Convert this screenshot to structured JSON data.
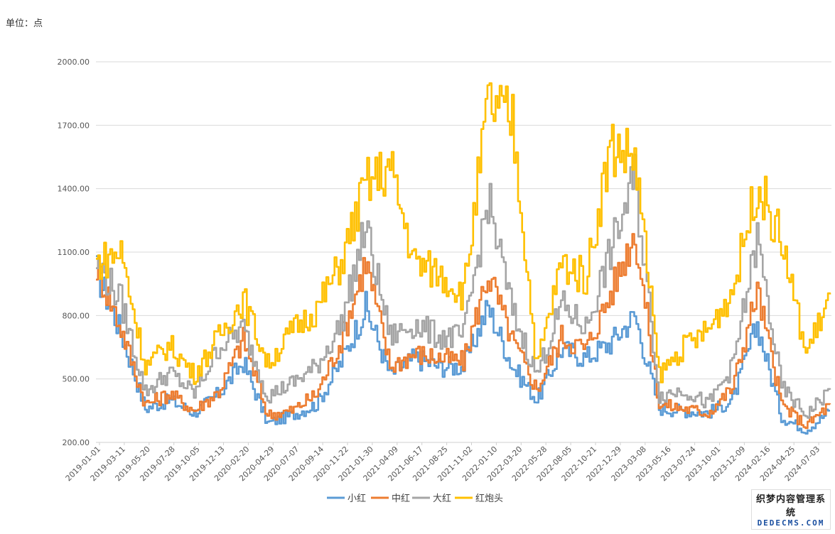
{
  "unit_label": "单位：点",
  "watermark": {
    "line1": "织梦内容管理系统",
    "line2": "DEDECMS.COM"
  },
  "chart_data": {
    "type": "line",
    "title": "",
    "xlabel": "",
    "ylabel": "",
    "ylim": [
      200,
      2200
    ],
    "yticks": [
      200,
      500,
      800,
      1100,
      1400,
      1700,
      2000
    ],
    "ytick_labels": [
      "200.00",
      "500.00",
      "800.00",
      "1100.00",
      "1400.00",
      "1700.00",
      "2000.00"
    ],
    "grid": "horizontal",
    "legend_position": "bottom",
    "x_tick_labels": [
      "2019-01-01",
      "2019-03-11",
      "2019-05-20",
      "2019-07-28",
      "2019-10-05",
      "2019-12-13",
      "2020-02-20",
      "2020-04-29",
      "2020-07-07",
      "2020-09-14",
      "2020-11-22",
      "2021-01-30",
      "2021-04-09",
      "2021-06-17",
      "2021-08-25",
      "2021-11-02",
      "2022-01-10",
      "2022-03-20",
      "2022-05-28",
      "2022-08-05",
      "2022-10-21",
      "2022-12-29",
      "2023-03-08",
      "2023-05-16",
      "2023-07-24",
      "2023-10-01",
      "2023-12-09",
      "2024-02-16",
      "2024-04-25",
      "2024-07-03"
    ],
    "x": [
      "2019-01-01",
      "2019-03-11",
      "2019-05-20",
      "2019-07-28",
      "2019-10-05",
      "2019-12-13",
      "2020-02-20",
      "2020-04-29",
      "2020-07-07",
      "2020-09-14",
      "2020-11-22",
      "2021-01-30",
      "2021-04-09",
      "2021-06-17",
      "2021-08-25",
      "2021-11-02",
      "2022-01-10",
      "2022-03-20",
      "2022-05-28",
      "2022-08-05",
      "2022-10-21",
      "2022-12-29",
      "2023-03-08",
      "2023-05-16",
      "2023-07-24",
      "2023-10-01",
      "2023-12-09",
      "2024-02-16",
      "2024-04-25",
      "2024-07-03",
      "2024-08-01"
    ],
    "series": [
      {
        "name": "小红",
        "color": "#5B9BD5",
        "values": [
          1010,
          720,
          360,
          400,
          340,
          430,
          580,
          290,
          330,
          380,
          580,
          840,
          520,
          600,
          560,
          560,
          840,
          560,
          400,
          640,
          600,
          670,
          800,
          360,
          350,
          340,
          400,
          760,
          320,
          260,
          350
        ]
      },
      {
        "name": "中红",
        "color": "#ED7D31",
        "values": [
          1040,
          740,
          380,
          430,
          350,
          440,
          690,
          330,
          350,
          430,
          680,
          1060,
          560,
          620,
          600,
          580,
          1000,
          680,
          450,
          700,
          640,
          900,
          1200,
          380,
          360,
          340,
          460,
          920,
          380,
          280,
          380
        ]
      },
      {
        "name": "大红",
        "color": "#A5A5A5",
        "values": [
          1050,
          870,
          440,
          530,
          430,
          650,
          740,
          420,
          480,
          560,
          760,
          1220,
          700,
          760,
          700,
          700,
          1350,
          820,
          520,
          850,
          740,
          1100,
          1450,
          420,
          450,
          380,
          560,
          1160,
          460,
          330,
          450
        ]
      },
      {
        "name": "红炮头",
        "color": "#FFC000",
        "values": [
          1050,
          1100,
          560,
          660,
          520,
          700,
          880,
          570,
          730,
          830,
          1050,
          1420,
          1500,
          1050,
          1000,
          900,
          1800,
          1720,
          560,
          1050,
          980,
          1600,
          1550,
          520,
          650,
          730,
          920,
          1430,
          1150,
          620,
          900
        ]
      }
    ]
  }
}
